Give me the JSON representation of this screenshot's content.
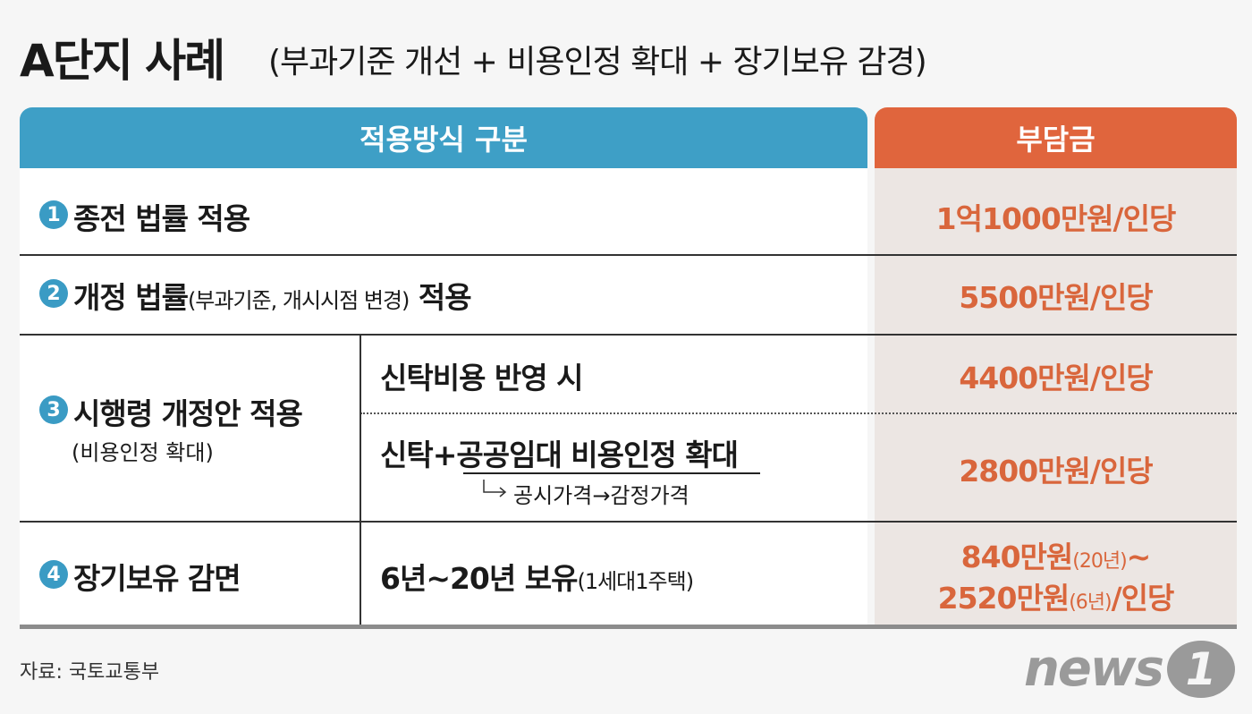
{
  "title": "A단지 사례",
  "subtitle": "(부과기준 개선 + 비용인정 확대 + 장기보유 감경)",
  "table": {
    "headers": [
      "적용방식 구분",
      "부담금"
    ],
    "rows": [
      {
        "number": "1",
        "method": "종전 법률 적용",
        "charge": "1억1000만원/인당"
      },
      {
        "number": "2",
        "method": "개정 법률",
        "method_note": "(부과기준, 개시시점 변경)",
        "method_suffix": "적용",
        "charge": "5500만원/인당"
      },
      {
        "number": "3",
        "method": "시행령 개정안 적용",
        "method_note": "(비용인정 확대)",
        "sub_rows": [
          {
            "condition": "신탁비용 반영 시",
            "charge": "4400만원/인당"
          },
          {
            "condition": "신탁+공공임대 비용인정 확대",
            "condition_note": "공시가격→감정가격",
            "charge": "2800만원/인당"
          }
        ]
      },
      {
        "number": "4",
        "method": "장기보유 감면",
        "condition": "6년~20년 보유",
        "condition_note": "(1세대1주택)",
        "charge_lines": [
          {
            "main": "840만원",
            "note": "(20년)",
            "tail": "~"
          },
          {
            "main": "2520만원",
            "note": "(6년)",
            "tail": "/인당"
          }
        ]
      }
    ]
  },
  "source": "자료: 국토교통부",
  "logo": {
    "text": "news",
    "mark": "1"
  }
}
